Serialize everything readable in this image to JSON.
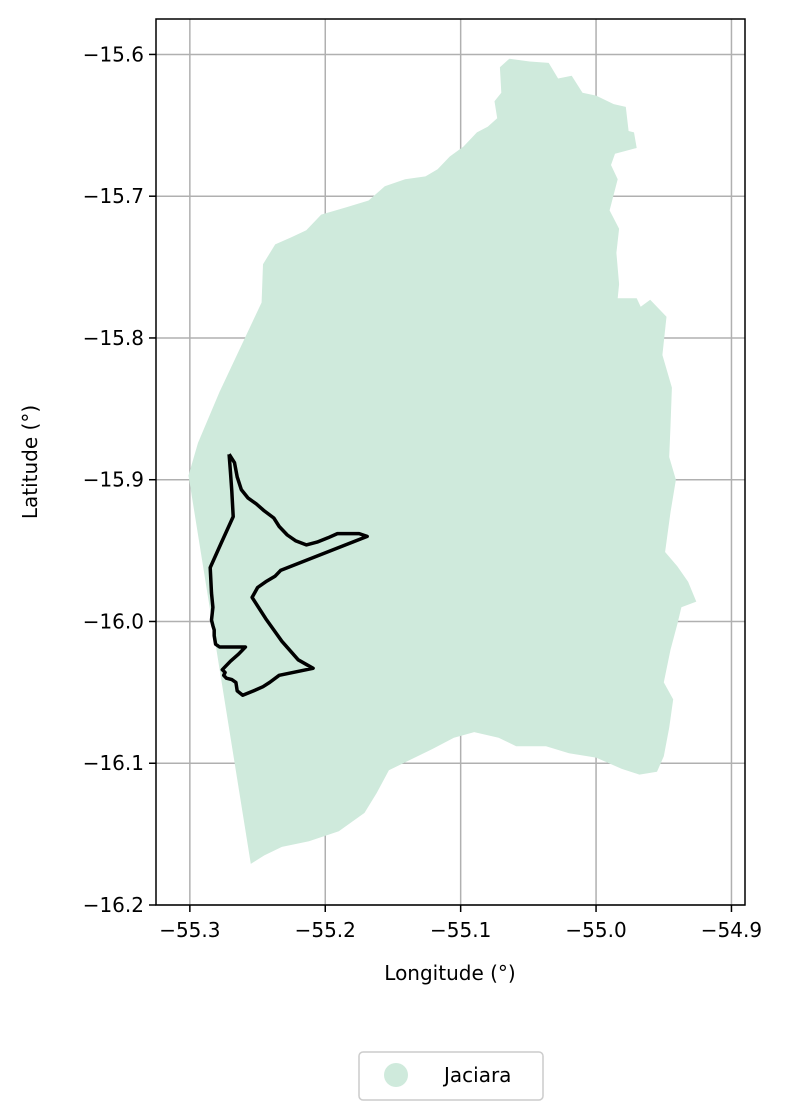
{
  "chart_data": {
    "type": "map",
    "xlabel": "Longitude (°)",
    "ylabel": "Latitude (°)",
    "xlim": [
      -55.325,
      -54.89
    ],
    "ylim": [
      -16.2,
      -15.575
    ],
    "grid": true,
    "x_ticks": [
      -55.3,
      -55.2,
      -55.1,
      -55.0,
      -54.9
    ],
    "y_ticks": [
      -15.6,
      -15.7,
      -15.8,
      -15.9,
      -16.0,
      -16.1,
      -16.2
    ],
    "x_tick_labels": [
      "−55.3",
      "−55.2",
      "−55.1",
      "−55.0",
      "−54.9"
    ],
    "y_tick_labels": [
      "−15.6",
      "−15.7",
      "−15.8",
      "−15.9",
      "−16.0",
      "−16.1",
      "−16.2"
    ],
    "legend": {
      "placement": "bottom-center",
      "entries": [
        {
          "label": "Jaciara",
          "color": "#cfeadc"
        }
      ]
    },
    "region": {
      "name": "Jaciara",
      "fill": "#cfeadc",
      "outline": [
        [
          -55.255,
          -16.171
        ],
        [
          -55.301,
          -15.897
        ],
        [
          -55.294,
          -15.874
        ],
        [
          -55.278,
          -15.838
        ],
        [
          -55.247,
          -15.775
        ],
        [
          -55.246,
          -15.748
        ],
        [
          -55.237,
          -15.734
        ],
        [
          -55.225,
          -15.729
        ],
        [
          -55.214,
          -15.724
        ],
        [
          -55.203,
          -15.713
        ],
        [
          -55.185,
          -15.708
        ],
        [
          -55.168,
          -15.703
        ],
        [
          -55.156,
          -15.693
        ],
        [
          -55.141,
          -15.688
        ],
        [
          -55.126,
          -15.686
        ],
        [
          -55.117,
          -15.681
        ],
        [
          -55.108,
          -15.672
        ],
        [
          -55.098,
          -15.665
        ],
        [
          -55.088,
          -15.655
        ],
        [
          -55.08,
          -15.651
        ],
        [
          -55.073,
          -15.645
        ],
        [
          -55.075,
          -15.633
        ],
        [
          -55.07,
          -15.627
        ],
        [
          -55.071,
          -15.609
        ],
        [
          -55.064,
          -15.603
        ],
        [
          -55.049,
          -15.605
        ],
        [
          -55.035,
          -15.606
        ],
        [
          -55.028,
          -15.617
        ],
        [
          -55.018,
          -15.615
        ],
        [
          -55.01,
          -15.627
        ],
        [
          -55.0,
          -15.629
        ],
        [
          -54.987,
          -15.635
        ],
        [
          -54.978,
          -15.637
        ],
        [
          -54.976,
          -15.654
        ],
        [
          -54.972,
          -15.655
        ],
        [
          -54.97,
          -15.666
        ],
        [
          -54.986,
          -15.67
        ],
        [
          -54.989,
          -15.678
        ],
        [
          -54.984,
          -15.688
        ],
        [
          -54.99,
          -15.71
        ],
        [
          -54.983,
          -15.723
        ],
        [
          -54.985,
          -15.74
        ],
        [
          -54.983,
          -15.762
        ],
        [
          -54.984,
          -15.772
        ],
        [
          -54.97,
          -15.772
        ],
        [
          -54.967,
          -15.778
        ],
        [
          -54.96,
          -15.773
        ],
        [
          -54.948,
          -15.785
        ],
        [
          -54.951,
          -15.812
        ],
        [
          -54.944,
          -15.835
        ],
        [
          -54.945,
          -15.862
        ],
        [
          -54.946,
          -15.884
        ],
        [
          -54.941,
          -15.9
        ],
        [
          -54.945,
          -15.923
        ],
        [
          -54.949,
          -15.951
        ],
        [
          -54.94,
          -15.961
        ],
        [
          -54.932,
          -15.972
        ],
        [
          -54.926,
          -15.986
        ],
        [
          -54.937,
          -15.99
        ],
        [
          -54.94,
          -16.002
        ],
        [
          -54.945,
          -16.02
        ],
        [
          -54.95,
          -16.043
        ],
        [
          -54.943,
          -16.055
        ],
        [
          -54.946,
          -16.075
        ],
        [
          -54.95,
          -16.095
        ],
        [
          -54.955,
          -16.106
        ],
        [
          -54.968,
          -16.108
        ],
        [
          -54.981,
          -16.104
        ],
        [
          -55.0,
          -16.096
        ],
        [
          -55.02,
          -16.093
        ],
        [
          -55.037,
          -16.088
        ],
        [
          -55.059,
          -16.088
        ],
        [
          -55.072,
          -16.082
        ],
        [
          -55.09,
          -16.078
        ],
        [
          -55.105,
          -16.082
        ],
        [
          -55.121,
          -16.09
        ],
        [
          -55.136,
          -16.097
        ],
        [
          -55.153,
          -16.105
        ],
        [
          -55.162,
          -16.121
        ],
        [
          -55.171,
          -16.135
        ],
        [
          -55.19,
          -16.148
        ],
        [
          -55.212,
          -16.155
        ],
        [
          -55.232,
          -16.159
        ],
        [
          -55.245,
          -16.165
        ]
      ]
    },
    "boundary": {
      "stroke": "#000000",
      "line": [
        [
          -55.271,
          -15.882
        ],
        [
          -55.267,
          -15.888
        ],
        [
          -55.265,
          -15.898
        ],
        [
          -55.262,
          -15.907
        ],
        [
          -55.257,
          -15.913
        ],
        [
          -55.251,
          -15.917
        ],
        [
          -55.245,
          -15.922
        ],
        [
          -55.238,
          -15.927
        ],
        [
          -55.234,
          -15.933
        ],
        [
          -55.228,
          -15.939
        ],
        [
          -55.222,
          -15.943
        ],
        [
          -55.214,
          -15.946
        ],
        [
          -55.206,
          -15.944
        ],
        [
          -55.198,
          -15.941
        ],
        [
          -55.191,
          -15.938
        ],
        [
          -55.183,
          -15.938
        ],
        [
          -55.175,
          -15.938
        ],
        [
          -55.169,
          -15.94
        ],
        [
          -55.233,
          -15.964
        ],
        [
          -55.237,
          -15.968
        ],
        [
          -55.244,
          -15.972
        ],
        [
          -55.25,
          -15.976
        ],
        [
          -55.254,
          -15.983
        ],
        [
          -55.244,
          -15.998
        ],
        [
          -55.232,
          -16.014
        ],
        [
          -55.22,
          -16.027
        ],
        [
          -55.209,
          -16.033
        ],
        [
          -55.234,
          -16.038
        ],
        [
          -55.241,
          -16.043
        ],
        [
          -55.246,
          -16.046
        ],
        [
          -55.253,
          -16.049
        ],
        [
          -55.261,
          -16.052
        ],
        [
          -55.265,
          -16.049
        ],
        [
          -55.266,
          -16.043
        ],
        [
          -55.269,
          -16.041
        ],
        [
          -55.273,
          -16.04
        ],
        [
          -55.275,
          -16.038
        ],
        [
          -55.274,
          -16.036
        ],
        [
          -55.276,
          -16.034
        ],
        [
          -55.27,
          -16.028
        ],
        [
          -55.264,
          -16.023
        ],
        [
          -55.259,
          -16.018
        ],
        [
          -55.278,
          -16.018
        ],
        [
          -55.281,
          -16.016
        ],
        [
          -55.282,
          -16.01
        ],
        [
          -55.282,
          -16.006
        ],
        [
          -55.283,
          -16.003
        ],
        [
          -55.284,
          -15.999
        ],
        [
          -55.283,
          -15.99
        ],
        [
          -55.284,
          -15.98
        ],
        [
          -55.285,
          -15.962
        ],
        [
          -55.277,
          -15.945
        ],
        [
          -55.268,
          -15.926
        ],
        [
          -55.269,
          -15.908
        ],
        [
          -55.27,
          -15.895
        ],
        [
          -55.271,
          -15.882
        ]
      ]
    }
  }
}
